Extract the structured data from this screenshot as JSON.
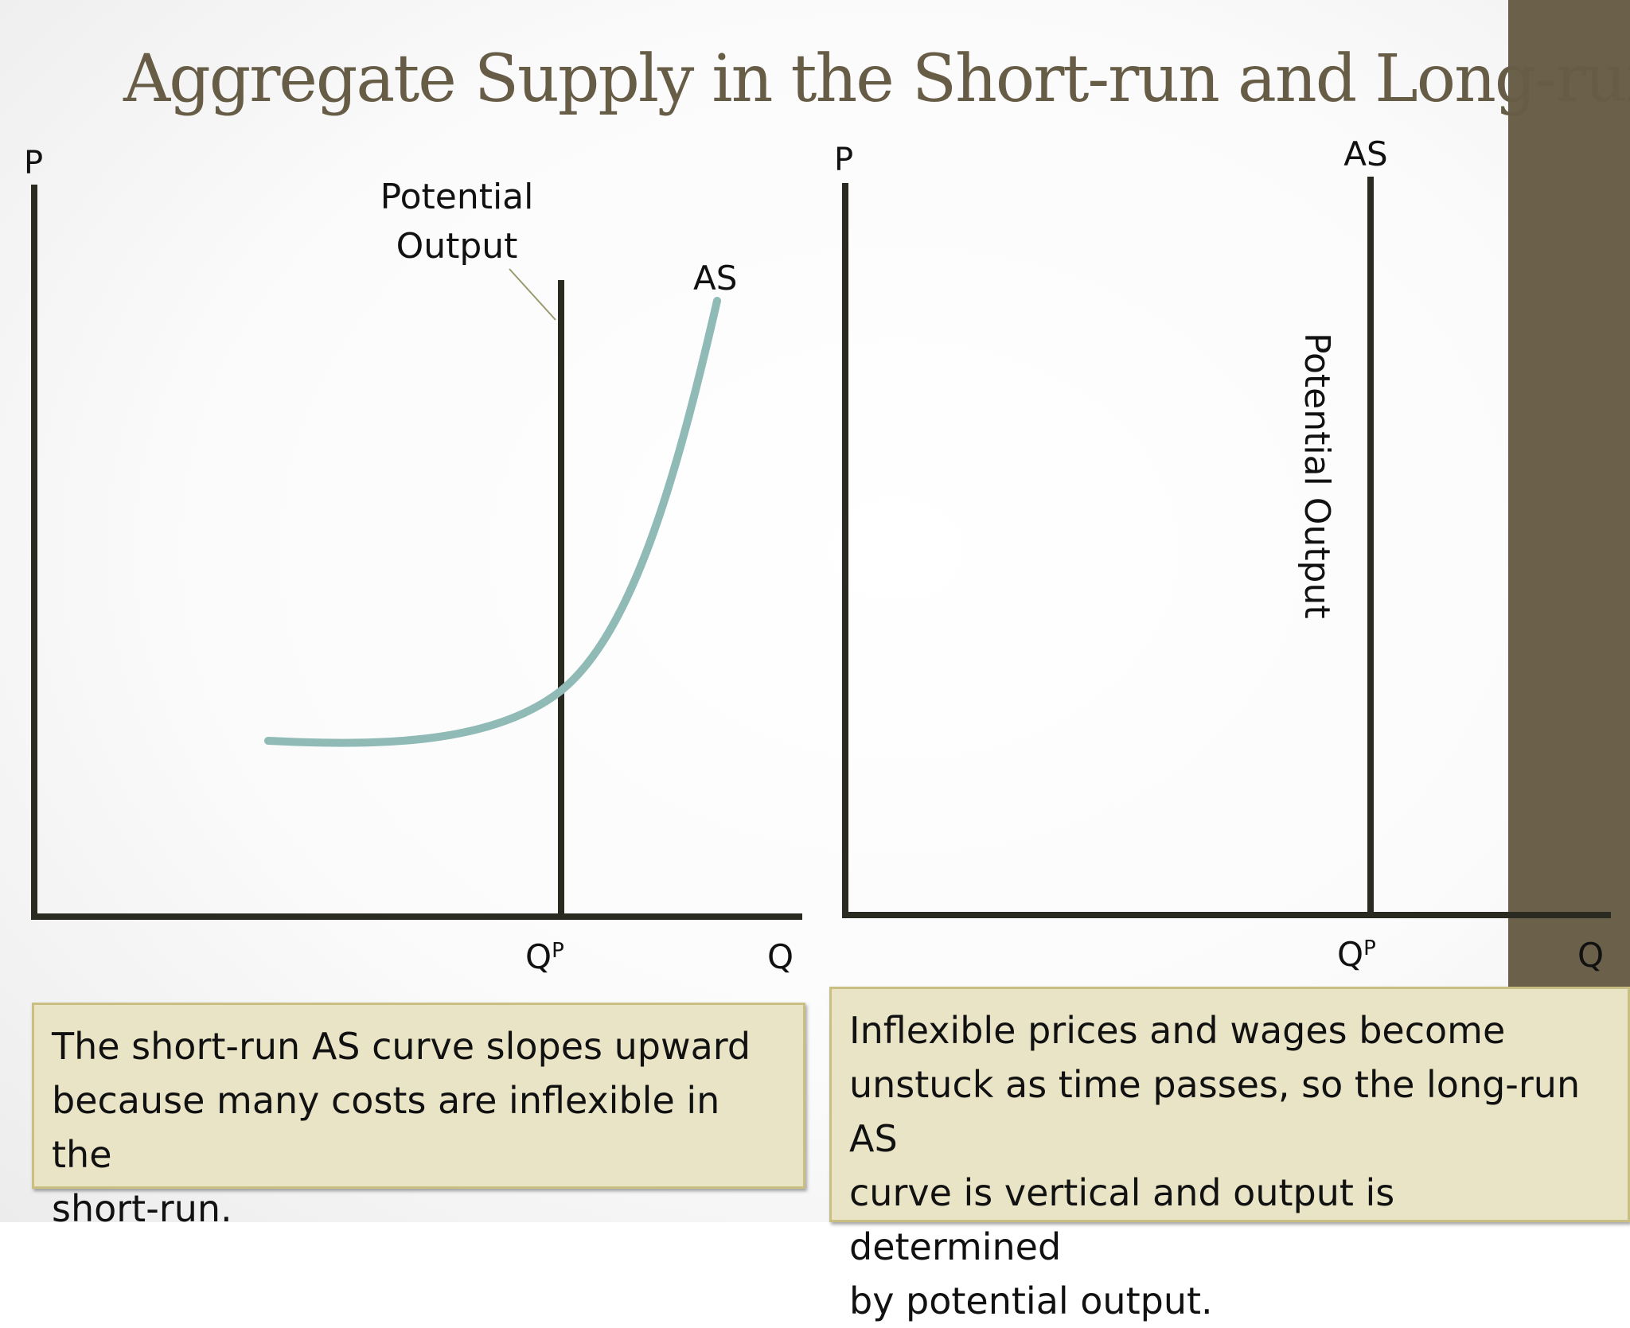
{
  "slide": {
    "title": "Aggregate Supply in the Short-run and Long-run",
    "colors": {
      "title": "#675d47",
      "side_band": "#6b6049",
      "caption_bg": "#e9e4c6",
      "caption_border": "#c9bf83",
      "as_curve": "#8fbab5",
      "axes": "#2b2a21"
    }
  },
  "left_diagram": {
    "y_axis_label": "P",
    "x_axis_label": "Q",
    "potential_label_line1": "Potential",
    "potential_label_line2": "Output",
    "curve_label": "AS",
    "qp_main": "Q",
    "qp_sup": "P"
  },
  "right_diagram": {
    "y_axis_label": "P",
    "x_axis_label": "Q",
    "curve_label": "AS",
    "potential_label": "Potential Output",
    "qp_main": "Q",
    "qp_sup": "P"
  },
  "captions": {
    "left_lines": [
      "The short-run AS curve slopes upward",
      "because many costs are inflexible in the",
      "short-run."
    ],
    "right_lines": [
      "Inflexible prices and wages become",
      "unstuck as time passes, so the long-run AS",
      "curve is vertical and output is determined",
      "by potential output."
    ]
  }
}
